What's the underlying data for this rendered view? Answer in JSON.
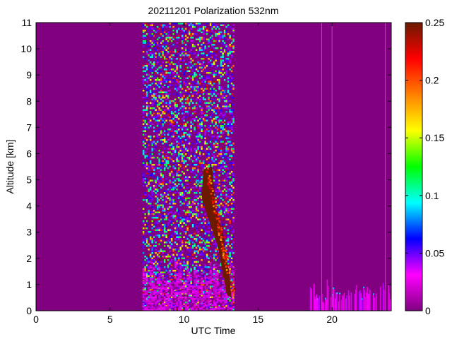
{
  "chart_data": {
    "type": "heatmap",
    "title": "20211201 Polarization 532nm",
    "xlabel": "UTC Time",
    "ylabel": "Altitude [km]",
    "xlim": [
      0,
      24
    ],
    "ylim": [
      0,
      11
    ],
    "x_ticks": [
      0,
      5,
      10,
      15,
      20
    ],
    "y_ticks": [
      0,
      1,
      2,
      3,
      4,
      5,
      6,
      7,
      8,
      9,
      10,
      11
    ],
    "colorbar": {
      "range": [
        0,
        0.25
      ],
      "ticks": [
        "0",
        "0.05",
        "0.1",
        "0.15",
        "0.2",
        "0.25"
      ],
      "colormap": [
        "#800080",
        "#ff00ff",
        "#0000ff",
        "#00ffff",
        "#00ff00",
        "#ffff00",
        "#ff8000",
        "#ff0000",
        "#6b1a00"
      ]
    },
    "background_color": "#800080",
    "segments": [
      {
        "name": "noisy-measurement-period",
        "x_range": [
          7.2,
          13.4
        ],
        "altitude_range": [
          0,
          11
        ],
        "value": "mixed"
      },
      {
        "name": "high-depolarization-layer",
        "x_range": [
          11.3,
          13.2
        ],
        "altitude_range": [
          0.5,
          5.5
        ],
        "value": 0.25
      },
      {
        "name": "low-altitude-aerosol-evening",
        "x_range": [
          18.5,
          24
        ],
        "altitude_range": [
          0,
          1.5
        ],
        "value": 0.02
      }
    ],
    "vertical_lines_x": [
      19.3,
      20.0,
      23.6
    ]
  }
}
